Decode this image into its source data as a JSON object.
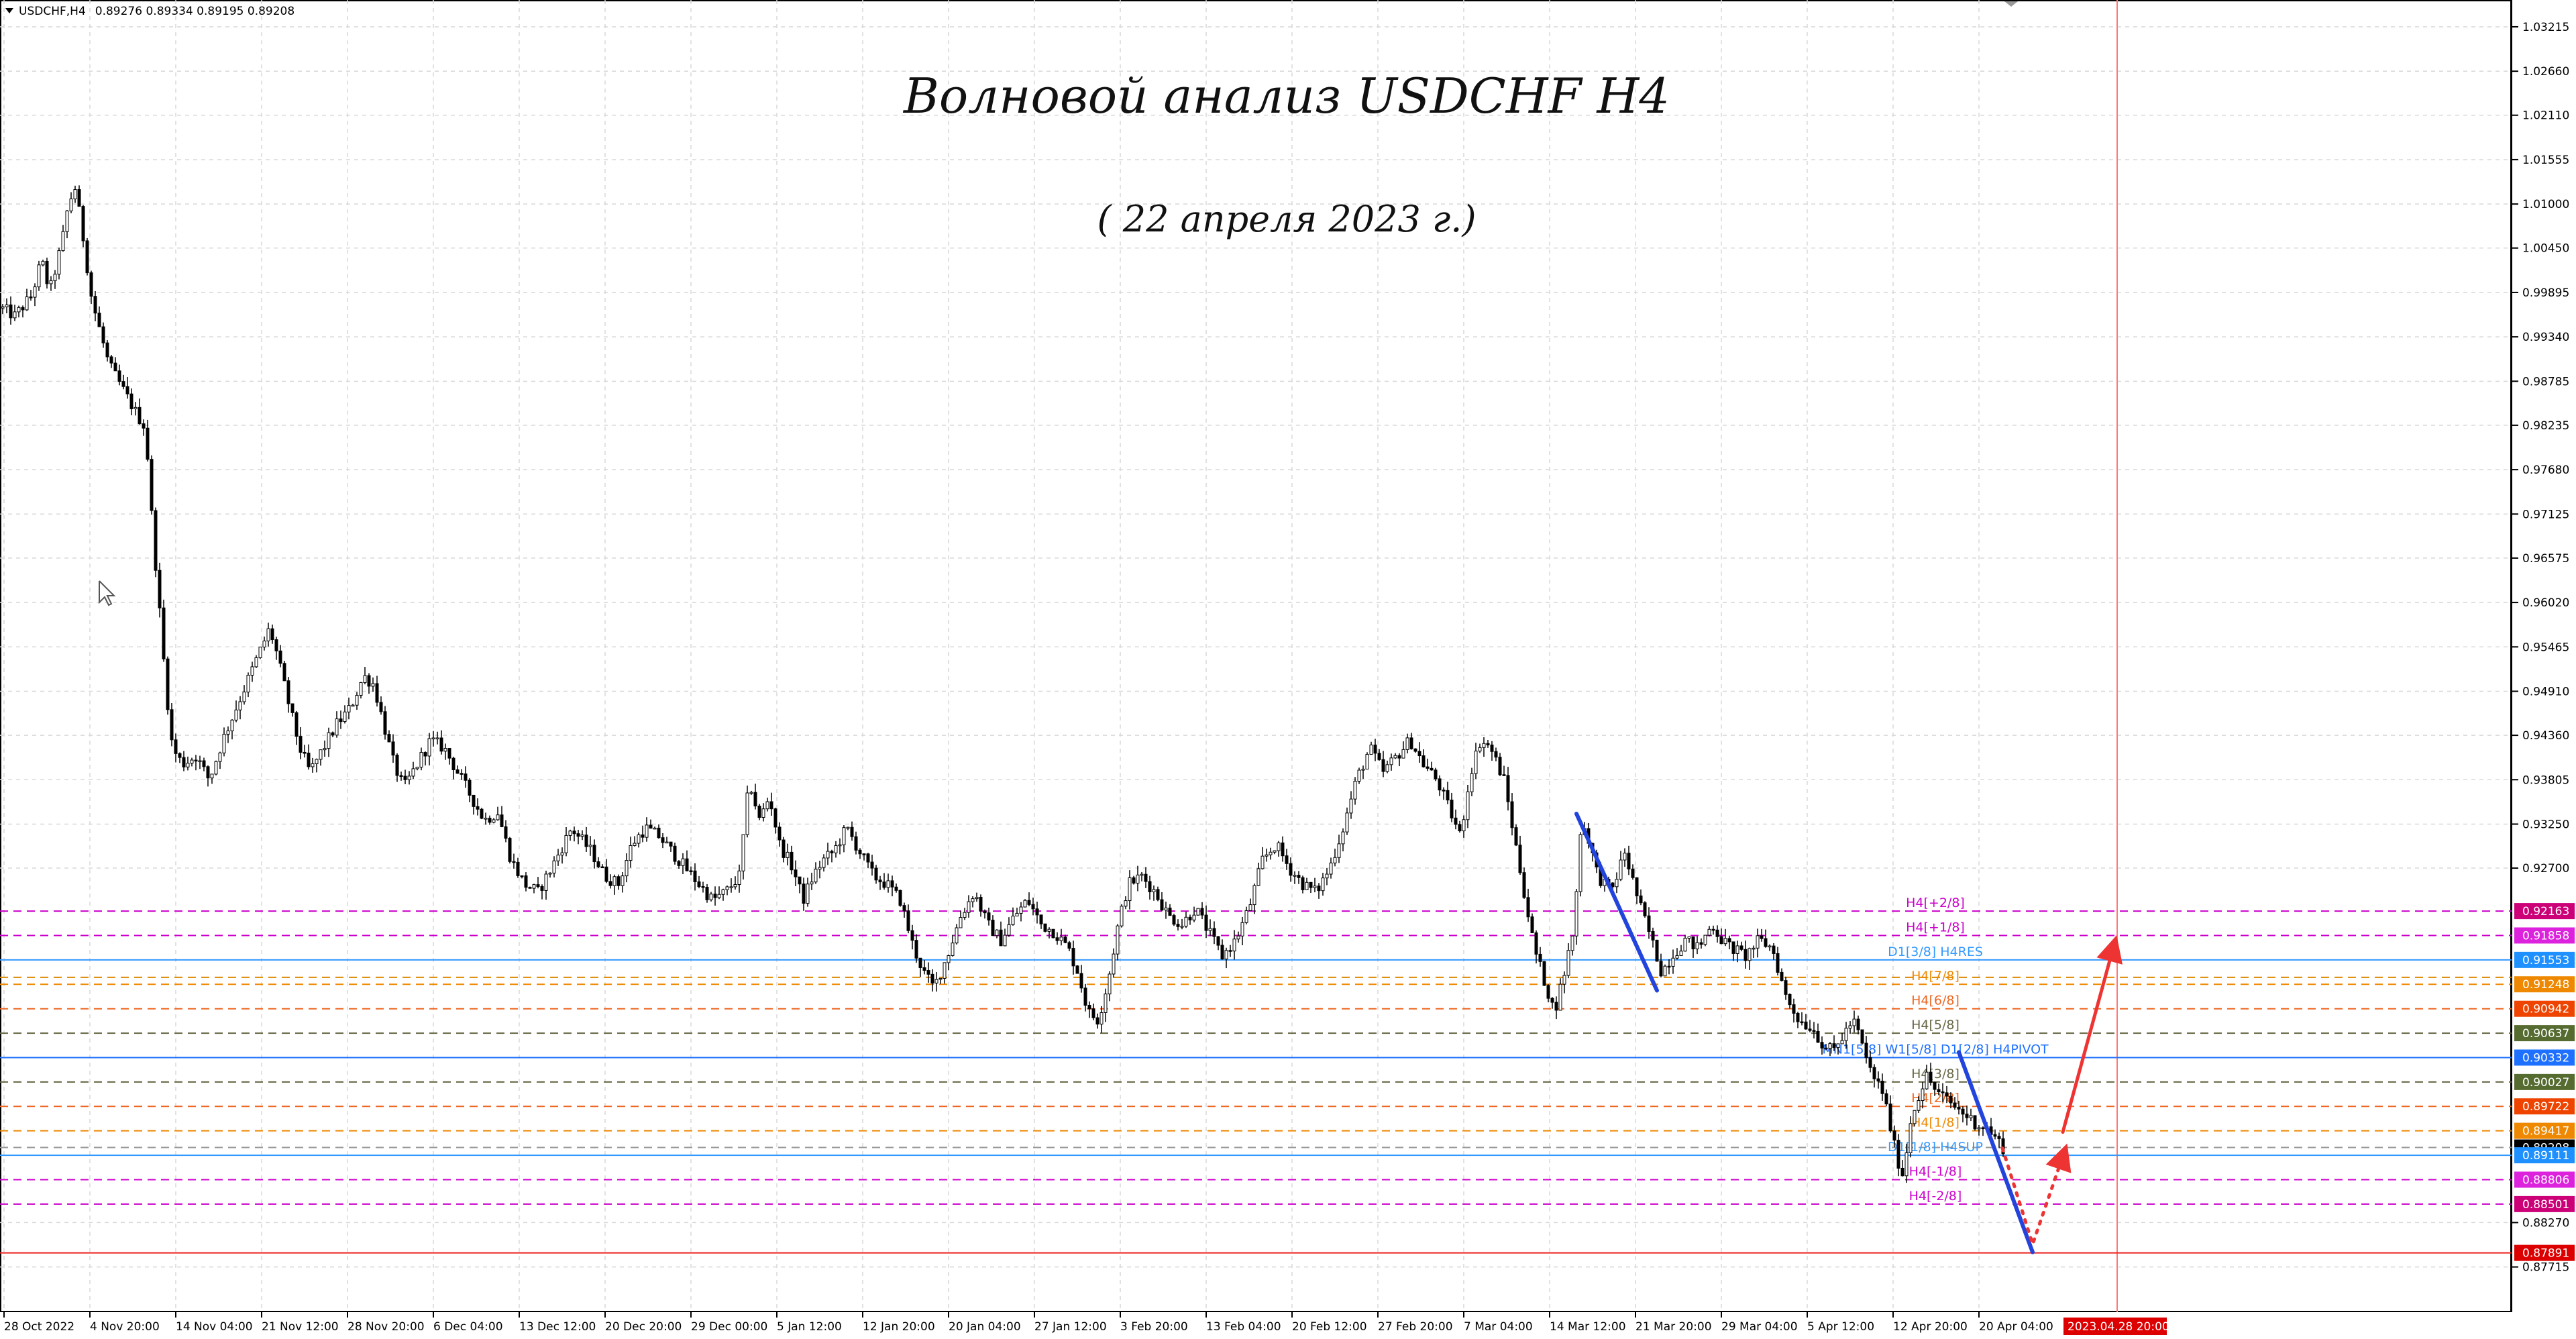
{
  "window": {
    "title": "USDCHF,H4",
    "ohlc": "0.89276 0.89334 0.89195 0.89208"
  },
  "chart_data": {
    "type": "candlestick",
    "symbol": "USDCHF",
    "timeframe": "H4",
    "title": "Волновой анализ USDCHF H4",
    "subtitle": "( 22 апреля 2023 г.)",
    "ylim": [
      0.8715,
      1.0355
    ],
    "grid": true,
    "ytick_labels": [
      "1.03215",
      "1.02660",
      "1.02110",
      "1.01555",
      "1.01000",
      "1.00450",
      "0.99895",
      "0.99340",
      "0.98785",
      "0.98235",
      "0.97680",
      "0.97125",
      "0.96575",
      "0.96020",
      "0.95465",
      "0.94910",
      "0.94360",
      "0.93805",
      "0.93250",
      "0.92700",
      "0.88270",
      "0.87715"
    ],
    "x_tick_labels": [
      "28 Oct 2022",
      "4 Nov 20:00",
      "14 Nov 04:00",
      "21 Nov 12:00",
      "28 Nov 20:00",
      "6 Dec 04:00",
      "13 Dec 12:00",
      "20 Dec 20:00",
      "29 Dec 00:00",
      "5 Jan 12:00",
      "12 Jan 20:00",
      "20 Jan 04:00",
      "27 Jan 12:00",
      "3 Feb 20:00",
      "13 Feb 04:00",
      "20 Feb 12:00",
      "27 Feb 20:00",
      "7 Mar 04:00",
      "14 Mar 12:00",
      "21 Mar 20:00",
      "29 Mar 04:00",
      "5 Apr 12:00",
      "12 Apr 20:00",
      "20 Apr 04:00"
    ],
    "price_path": [
      [
        0,
        0.997
      ],
      [
        20,
        0.996
      ],
      [
        45,
        0.9985
      ],
      [
        60,
        1.003
      ],
      [
        72,
        0.999
      ],
      [
        90,
        1.005
      ],
      [
        100,
        1.01
      ],
      [
        110,
        1.012
      ],
      [
        120,
        1.007
      ],
      [
        135,
        0.998
      ],
      [
        160,
        0.99
      ],
      [
        180,
        0.987
      ],
      [
        200,
        0.984
      ],
      [
        215,
        0.982
      ],
      [
        225,
        0.97
      ],
      [
        235,
        0.96
      ],
      [
        245,
        0.95
      ],
      [
        255,
        0.942
      ],
      [
        270,
        0.94
      ],
      [
        290,
        0.941
      ],
      [
        310,
        0.938
      ],
      [
        330,
        0.943
      ],
      [
        355,
        0.948
      ],
      [
        375,
        0.952
      ],
      [
        390,
        0.955
      ],
      [
        400,
        0.957
      ],
      [
        410,
        0.954
      ],
      [
        430,
        0.947
      ],
      [
        445,
        0.942
      ],
      [
        460,
        0.939
      ],
      [
        480,
        0.942
      ],
      [
        500,
        0.945
      ],
      [
        520,
        0.947
      ],
      [
        540,
        0.951
      ],
      [
        555,
        0.95
      ],
      [
        570,
        0.945
      ],
      [
        585,
        0.94
      ],
      [
        600,
        0.937
      ],
      [
        620,
        0.94
      ],
      [
        640,
        0.943
      ],
      [
        660,
        0.942
      ],
      [
        680,
        0.939
      ],
      [
        700,
        0.936
      ],
      [
        720,
        0.933
      ],
      [
        740,
        0.934
      ],
      [
        760,
        0.928
      ],
      [
        780,
        0.925
      ],
      [
        800,
        0.924
      ],
      [
        820,
        0.927
      ],
      [
        850,
        0.932
      ],
      [
        880,
        0.929
      ],
      [
        900,
        0.926
      ],
      [
        920,
        0.925
      ],
      [
        940,
        0.93
      ],
      [
        960,
        0.932
      ],
      [
        980,
        0.931
      ],
      [
        1000,
        0.929
      ],
      [
        1020,
        0.927
      ],
      [
        1040,
        0.925
      ],
      [
        1060,
        0.923
      ],
      [
        1080,
        0.924
      ],
      [
        1100,
        0.926
      ],
      [
        1115,
        0.938
      ],
      [
        1130,
        0.933
      ],
      [
        1145,
        0.936
      ],
      [
        1160,
        0.93
      ],
      [
        1180,
        0.927
      ],
      [
        1195,
        0.923
      ],
      [
        1210,
        0.926
      ],
      [
        1225,
        0.928
      ],
      [
        1240,
        0.929
      ],
      [
        1260,
        0.932
      ],
      [
        1280,
        0.929
      ],
      [
        1300,
        0.926
      ],
      [
        1320,
        0.925
      ],
      [
        1340,
        0.923
      ],
      [
        1360,
        0.917
      ],
      [
        1375,
        0.914
      ],
      [
        1390,
        0.912
      ],
      [
        1410,
        0.916
      ],
      [
        1430,
        0.921
      ],
      [
        1450,
        0.924
      ],
      [
        1470,
        0.92
      ],
      [
        1490,
        0.918
      ],
      [
        1510,
        0.921
      ],
      [
        1530,
        0.923
      ],
      [
        1550,
        0.92
      ],
      [
        1570,
        0.919
      ],
      [
        1590,
        0.917
      ],
      [
        1605,
        0.914
      ],
      [
        1620,
        0.909
      ],
      [
        1635,
        0.908
      ],
      [
        1650,
        0.913
      ],
      [
        1665,
        0.92
      ],
      [
        1680,
        0.925
      ],
      [
        1700,
        0.926
      ],
      [
        1720,
        0.924
      ],
      [
        1740,
        0.921
      ],
      [
        1760,
        0.92
      ],
      [
        1780,
        0.922
      ],
      [
        1800,
        0.919
      ],
      [
        1820,
        0.916
      ],
      [
        1840,
        0.918
      ],
      [
        1860,
        0.922
      ],
      [
        1880,
        0.928
      ],
      [
        1900,
        0.93
      ],
      [
        1920,
        0.927
      ],
      [
        1940,
        0.925
      ],
      [
        1960,
        0.924
      ],
      [
        1980,
        0.927
      ],
      [
        2000,
        0.932
      ],
      [
        2020,
        0.938
      ],
      [
        2040,
        0.942
      ],
      [
        2060,
        0.939
      ],
      [
        2080,
        0.941
      ],
      [
        2100,
        0.943
      ],
      [
        2120,
        0.94
      ],
      [
        2140,
        0.938
      ],
      [
        2160,
        0.934
      ],
      [
        2175,
        0.931
      ],
      [
        2190,
        0.939
      ],
      [
        2205,
        0.943
      ],
      [
        2220,
        0.942
      ],
      [
        2240,
        0.938
      ],
      [
        2255,
        0.931
      ],
      [
        2270,
        0.924
      ],
      [
        2285,
        0.917
      ],
      [
        2300,
        0.913
      ],
      [
        2315,
        0.909
      ],
      [
        2330,
        0.914
      ],
      [
        2345,
        0.92
      ],
      [
        2355,
        0.933
      ],
      [
        2365,
        0.931
      ],
      [
        2380,
        0.926
      ],
      [
        2400,
        0.924
      ],
      [
        2420,
        0.929
      ],
      [
        2440,
        0.923
      ],
      [
        2460,
        0.918
      ],
      [
        2475,
        0.914
      ],
      [
        2490,
        0.916
      ],
      [
        2510,
        0.918
      ],
      [
        2530,
        0.917
      ],
      [
        2550,
        0.92
      ],
      [
        2565,
        0.918
      ],
      [
        2580,
        0.917
      ],
      [
        2600,
        0.916
      ],
      [
        2620,
        0.918
      ],
      [
        2640,
        0.917
      ],
      [
        2660,
        0.911
      ],
      [
        2680,
        0.908
      ],
      [
        2700,
        0.907
      ],
      [
        2715,
        0.905
      ],
      [
        2730,
        0.904
      ],
      [
        2745,
        0.906
      ],
      [
        2760,
        0.908
      ],
      [
        2770,
        0.906
      ],
      [
        2780,
        0.903
      ],
      [
        2790,
        0.901
      ],
      [
        2805,
        0.899
      ],
      [
        2815,
        0.895
      ],
      [
        2825,
        0.891
      ],
      [
        2835,
        0.8885
      ],
      [
        2845,
        0.895
      ],
      [
        2855,
        0.898
      ],
      [
        2870,
        0.901
      ],
      [
        2885,
        0.899
      ],
      [
        2900,
        0.898
      ],
      [
        2915,
        0.897
      ],
      [
        2930,
        0.896
      ],
      [
        2945,
        0.895
      ],
      [
        2960,
        0.8945
      ],
      [
        2975,
        0.893
      ],
      [
        2985,
        0.892
      ]
    ],
    "levels": [
      {
        "label": "H4[+2/8]",
        "price_label": "0.92163",
        "price": 0.92163,
        "color": "#cc00cc",
        "tag_bg": "#cc0077",
        "dash": true
      },
      {
        "label": "H4[+1/8]",
        "price_label": "0.91858",
        "price": 0.91858,
        "color": "#cc00cc",
        "tag_bg": "#dd22dd",
        "dash": true
      },
      {
        "label": "D1[3/8] H4RES",
        "price_label": "0.91553",
        "price": 0.91553,
        "color": "#3399ff",
        "tag_bg": "#1e90ff",
        "dash": false
      },
      {
        "label": "",
        "price_label": "0.91335",
        "price": 0.91335,
        "color": "#dd8800",
        "tag_bg": "",
        "dash": true
      },
      {
        "label": "H4[7/8]",
        "price_label": "0.91248",
        "price": 0.91248,
        "color": "#ee8800",
        "tag_bg": "#ee8800",
        "dash": true
      },
      {
        "label": "H4[6/8]",
        "price_label": "0.90942",
        "price": 0.90942,
        "color": "#ee6622",
        "tag_bg": "#ee4400",
        "dash": true
      },
      {
        "label": "H4[5/8]",
        "price_label": "0.90637",
        "price": 0.90637,
        "color": "#666644",
        "tag_bg": "#556b2f",
        "dash": true
      },
      {
        "label": "MN1[5/8] W1[5/8] D1[2/8] H4PIVOT",
        "price_label": "0.90332",
        "price": 0.90332,
        "color": "#1e70ff",
        "tag_bg": "#1e70ff",
        "dash": false
      },
      {
        "label": "H4[3/8]",
        "price_label": "0.90027",
        "price": 0.90027,
        "color": "#666644",
        "tag_bg": "#556b2f",
        "dash": true
      },
      {
        "label": "H4[2/8]",
        "price_label": "0.89722",
        "price": 0.89722,
        "color": "#ee6622",
        "tag_bg": "#ee4400",
        "dash": true
      },
      {
        "label": "H4[1/8]",
        "price_label": "0.89417",
        "price": 0.89417,
        "color": "#ee8800",
        "tag_bg": "#ee8800",
        "dash": true
      },
      {
        "label": "",
        "price_label": "0.89208",
        "price": 0.89208,
        "color": "#999999",
        "tag_bg": "#000000",
        "dash": true
      },
      {
        "label": "D1[1/8] H4SUP",
        "price_label": "0.89111",
        "price": 0.89111,
        "color": "#3399ff",
        "tag_bg": "#1e90ff",
        "dash": false
      },
      {
        "label": "H4[-1/8]",
        "price_label": "0.88806",
        "price": 0.88806,
        "color": "#cc00cc",
        "tag_bg": "#dd22dd",
        "dash": true
      },
      {
        "label": "H4[-2/8]",
        "price_label": "0.88501",
        "price": 0.88501,
        "color": "#cc00cc",
        "tag_bg": "#cc0077",
        "dash": true
      },
      {
        "label": "",
        "price_label": "0.87891",
        "price": 0.87891,
        "color": "#ee2222",
        "tag_bg": "#dd0000",
        "dash": false
      }
    ],
    "wave_lines": [
      {
        "color": "#2244dd",
        "points": [
          [
            2350,
            0.9338
          ],
          [
            2470,
            0.9117
          ]
        ]
      },
      {
        "color": "#2244dd",
        "points": [
          [
            2920,
            0.904
          ],
          [
            3030,
            0.879
          ]
        ]
      }
    ],
    "forecast": [
      {
        "color": "#ee3333",
        "style": "dotted",
        "points": [
          [
            2985,
            0.892
          ],
          [
            3030,
            0.88
          ],
          [
            3075,
            0.891
          ]
        ]
      },
      {
        "color": "#ee3333",
        "style": "solid",
        "points": [
          [
            3075,
            0.894
          ],
          [
            3150,
            0.917
          ]
        ]
      }
    ],
    "future_date_label": "2023.04.28 20:00",
    "colors": {
      "candle": "#000000",
      "grid": "#d8d8d8",
      "future_line": "#ff7777"
    }
  }
}
